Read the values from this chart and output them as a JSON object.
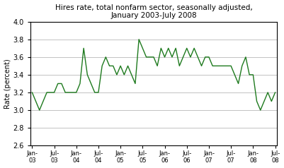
{
  "title": "Hires rate, total nonfarm sector, seasonally adjusted,\nJanuary 2003-July 2008",
  "ylabel": "Rate (percent)",
  "ylim": [
    2.6,
    4.0
  ],
  "yticks": [
    2.6,
    2.8,
    3.0,
    3.2,
    3.4,
    3.6,
    3.8,
    4.0
  ],
  "line_color": "#1e7a1e",
  "bg_color": "#ffffff",
  "outer_bg": "#ffffff",
  "values": [
    3.2,
    3.1,
    3.0,
    3.1,
    3.2,
    3.2,
    3.2,
    3.3,
    3.3,
    3.2,
    3.2,
    3.2,
    3.2,
    3.3,
    3.7,
    3.4,
    3.3,
    3.2,
    3.2,
    3.5,
    3.6,
    3.5,
    3.5,
    3.4,
    3.5,
    3.4,
    3.5,
    3.4,
    3.3,
    3.8,
    3.7,
    3.6,
    3.6,
    3.6,
    3.5,
    3.7,
    3.6,
    3.7,
    3.6,
    3.7,
    3.5,
    3.6,
    3.7,
    3.6,
    3.7,
    3.6,
    3.5,
    3.6,
    3.6,
    3.5,
    3.5,
    3.5,
    3.5,
    3.5,
    3.5,
    3.4,
    3.3,
    3.5,
    3.6,
    3.4,
    3.4,
    3.1,
    3.0,
    3.1,
    3.2,
    3.1,
    3.2
  ],
  "xtick_positions": [
    0,
    6,
    12,
    18,
    24,
    30,
    36,
    42,
    48,
    54,
    60,
    66
  ],
  "xtick_labels": [
    "Jan-\n03",
    "Jul-\n03",
    "Jan-\n04",
    "Jul-\n04",
    "Jan-\n05",
    "Jul-\n05",
    "Jan-\n06",
    "Jul-\n06",
    "Jan-\n07",
    "Jul-\n07",
    "Jan-\n08",
    "Jul-\n08"
  ],
  "title_fontsize": 7.5,
  "ylabel_fontsize": 7,
  "ytick_fontsize": 7,
  "xtick_fontsize": 6,
  "linewidth": 1.0,
  "grid_color": "#aaaaaa",
  "grid_linewidth": 0.5,
  "spine_color": "#000000"
}
